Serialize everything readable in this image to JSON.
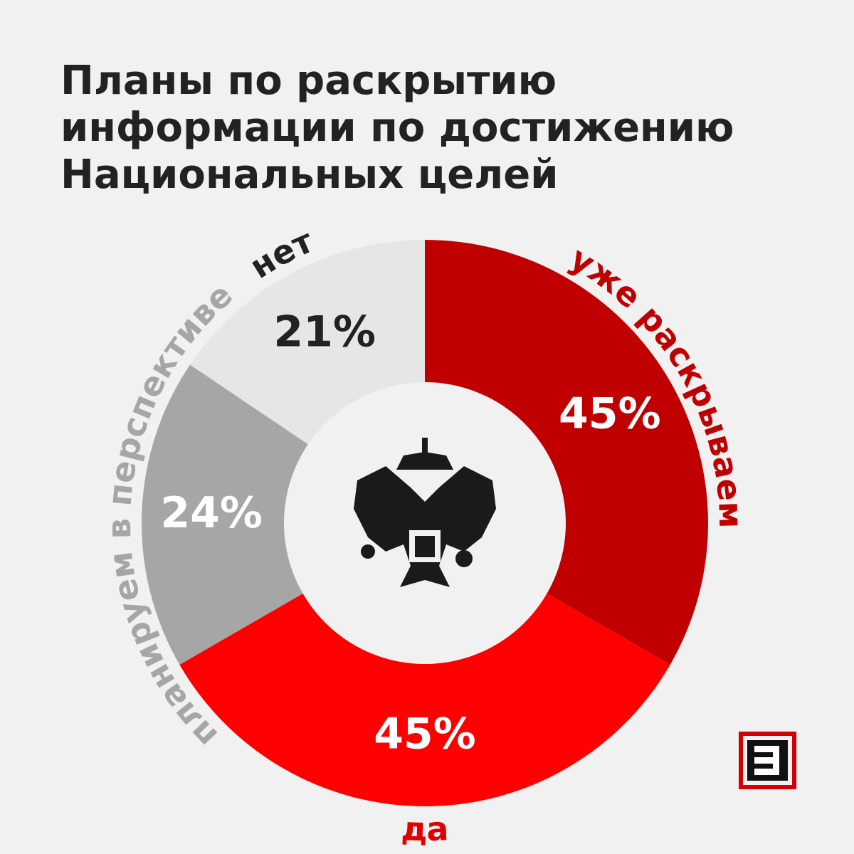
{
  "chart_data": {
    "type": "donut",
    "title": [
      "Планы по раскрытию",
      "информации по достижению",
      "Национальных целей"
    ],
    "categories": [
      "уже раскрываем",
      "да",
      "планируем в перспективе",
      "нет"
    ],
    "values": [
      45,
      45,
      24,
      21
    ],
    "value_labels": [
      "45%",
      "45%",
      "24%",
      "21%"
    ],
    "colors": [
      "#c00000",
      "#ff0000",
      "#a6a6a6",
      "#e6e6e6"
    ],
    "label_colors": [
      "#c00000",
      "#e00000",
      "#a6a6a6",
      "#222222"
    ]
  }
}
